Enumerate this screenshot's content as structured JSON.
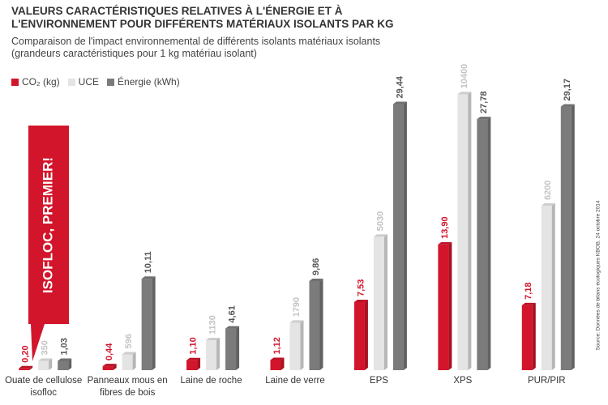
{
  "chart_data": {
    "type": "bar",
    "title": [
      "VALEURS CARACTÉRISTIQUES RELATIVES À L'ÉNERGIE ET À",
      "L'ENVIRONNEMENT POUR DIFFÉRENTS MATÉRIAUX ISOLANTS PAR KG"
    ],
    "subtitle": [
      "Comparaison de l'impact environnemental de différents isolants matériaux isolants",
      "(grandeurs caractéristiques pour 1 kg matériau isolant)"
    ],
    "callout": "ISOFLOC, PREMIER!",
    "source": "Source: Données de bilans écologiques KBOB, 24 octobre 2014",
    "categories": [
      "Ouate de cellulose isofloc",
      "Panneaux mous en fibres de bois",
      "Laine de roche",
      "Laine de verre",
      "EPS",
      "XPS",
      "PUR/PIR"
    ],
    "series": [
      {
        "name": "CO₂ (kg)",
        "color": "#d2152b",
        "label_color": "#d2152b",
        "values": [
          0.2,
          0.44,
          1.1,
          1.12,
          7.53,
          13.9,
          7.18
        ],
        "value_labels": [
          "0,20",
          "0,44",
          "1,10",
          "1,12",
          "7,53",
          "13,90",
          "7,18"
        ]
      },
      {
        "name": "UCE",
        "color": "#e4e4e4",
        "label_color": "#c4c4c4",
        "axis": "y2",
        "values": [
          350,
          596,
          1130,
          1790,
          5030,
          10400,
          6200
        ]
      },
      {
        "name": "Énergie  (kWh)",
        "color": "#7b7b7b",
        "label_color": "#555555",
        "values": [
          1.03,
          10.11,
          4.61,
          9.86,
          29.44,
          27.78,
          29.17
        ],
        "value_labels": [
          "1,03",
          "10,11",
          "4,61",
          "9,86",
          "29,44",
          "27,78",
          "29,17"
        ]
      }
    ],
    "ylim": [
      0,
      32
    ],
    "y2lim": [
      0,
      10900
    ]
  }
}
